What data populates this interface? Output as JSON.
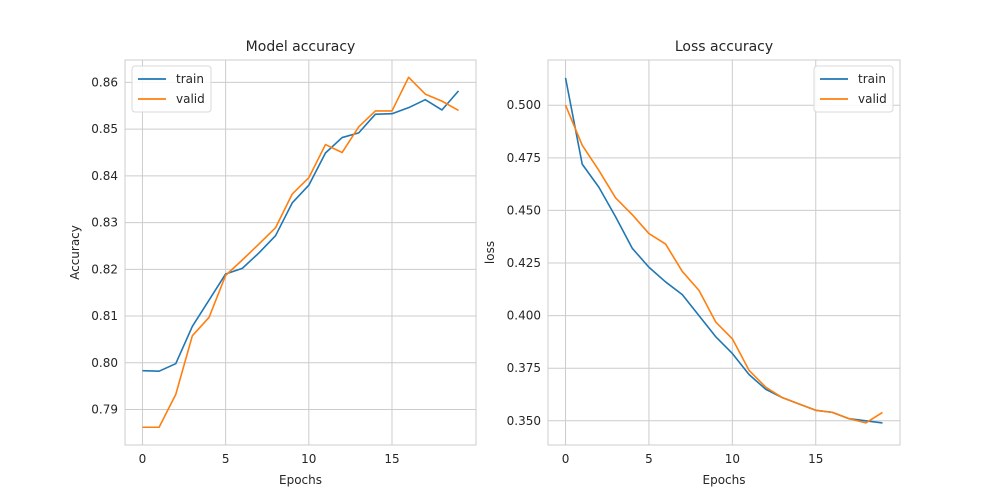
{
  "chart_data": [
    {
      "type": "line",
      "title": "Model accuracy",
      "xlabel": "Epochs",
      "ylabel": "Accuracy",
      "xlim": [
        -1.05,
        20.05
      ],
      "ylim": [
        0.7824,
        0.8648
      ],
      "xticks": [
        0,
        5,
        10,
        15
      ],
      "yticks": [
        0.79,
        0.8,
        0.81,
        0.82,
        0.83,
        0.84,
        0.85,
        0.86
      ],
      "ytick_labels": [
        "0.79",
        "0.80",
        "0.81",
        "0.82",
        "0.83",
        "0.84",
        "0.85",
        "0.86"
      ],
      "grid": true,
      "legend_position": "upper-left",
      "x": [
        0,
        1,
        2,
        3,
        4,
        5,
        6,
        7,
        8,
        9,
        10,
        11,
        12,
        13,
        14,
        15,
        16,
        17,
        18,
        19
      ],
      "series": [
        {
          "name": "train",
          "color": "#1f77b4",
          "values": [
            0.7983,
            0.7982,
            0.7998,
            0.8078,
            0.8134,
            0.819,
            0.8202,
            0.8235,
            0.8272,
            0.8342,
            0.838,
            0.8449,
            0.8482,
            0.8492,
            0.8532,
            0.8533,
            0.8546,
            0.8563,
            0.8541,
            0.8582
          ]
        },
        {
          "name": "valid",
          "color": "#ff7f0e",
          "values": [
            0.7862,
            0.7862,
            0.7932,
            0.8058,
            0.8097,
            0.8187,
            0.822,
            0.8254,
            0.8289,
            0.8361,
            0.8396,
            0.8467,
            0.845,
            0.8505,
            0.8539,
            0.8539,
            0.8611,
            0.8575,
            0.856,
            0.854
          ]
        }
      ]
    },
    {
      "type": "line",
      "title": "Loss accuracy",
      "xlabel": "Epochs",
      "ylabel": "loss",
      "xlim": [
        -1.05,
        20.05
      ],
      "ylim": [
        0.3385,
        0.5215
      ],
      "xticks": [
        0,
        5,
        10,
        15
      ],
      "yticks": [
        0.35,
        0.375,
        0.4,
        0.425,
        0.45,
        0.475,
        0.5
      ],
      "ytick_labels": [
        "0.350",
        "0.375",
        "0.400",
        "0.425",
        "0.450",
        "0.475",
        "0.500"
      ],
      "grid": true,
      "legend_position": "upper-right",
      "x": [
        0,
        1,
        2,
        3,
        4,
        5,
        6,
        7,
        8,
        9,
        10,
        11,
        12,
        13,
        14,
        15,
        16,
        17,
        18,
        19
      ],
      "series": [
        {
          "name": "train",
          "color": "#1f77b4",
          "values": [
            0.513,
            0.472,
            0.461,
            0.447,
            0.432,
            0.423,
            0.416,
            0.41,
            0.4,
            0.39,
            0.382,
            0.372,
            0.365,
            0.361,
            0.358,
            0.355,
            0.354,
            0.351,
            0.35,
            0.349
          ]
        },
        {
          "name": "valid",
          "color": "#ff7f0e",
          "values": [
            0.5,
            0.481,
            0.469,
            0.456,
            0.448,
            0.439,
            0.434,
            0.421,
            0.412,
            0.397,
            0.389,
            0.374,
            0.366,
            0.361,
            0.358,
            0.355,
            0.354,
            0.351,
            0.349,
            0.354
          ]
        }
      ]
    }
  ]
}
